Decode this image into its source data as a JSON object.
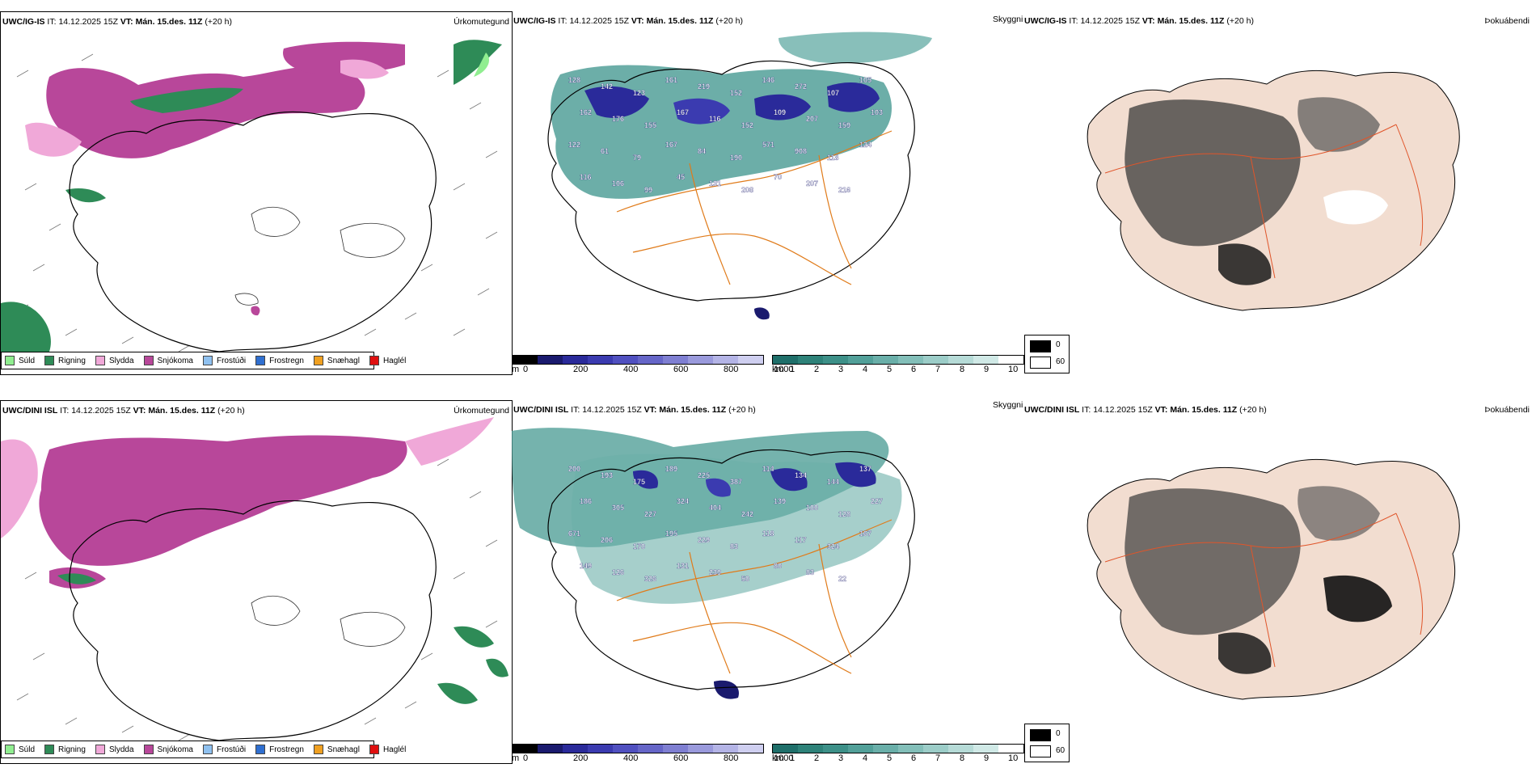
{
  "rows": [
    {
      "precip": {
        "model": "UWC/IG-IS",
        "it_label": "IT:",
        "it_value": "14.12.2025 15Z",
        "vt_label": "VT:",
        "vt_value": "Mán. 15.des. 11Z",
        "lead": "(+20 h)",
        "ptype": "Úrkomutegund"
      },
      "cloud": {
        "model": "UWC/IG-IS",
        "it_label": "IT:",
        "it_value": "14.12.2025 15Z",
        "vt_label": "VT:",
        "vt_value": "Mán. 15.des. 11Z",
        "lead": "(+20 h)",
        "ptype": "Skyggni"
      },
      "fog": {
        "model": "UWC/IG-IS",
        "it_label": "IT:",
        "it_value": "14.12.2025 15Z",
        "vt_label": "VT:",
        "vt_value": "Mán. 15.des. 11Z",
        "lead": "(+20 h)",
        "ptype": "Þokuábendi"
      },
      "cloud_labels": [
        "128",
        "142",
        "123",
        "161",
        "219",
        "152",
        "146",
        "272",
        "107",
        "105",
        "162",
        "176",
        "155",
        "167",
        "116",
        "152",
        "109",
        "207",
        "159",
        "103",
        "122",
        "61",
        "79",
        "167",
        "84",
        "190",
        "571",
        "908",
        "118",
        "124",
        "116",
        "106",
        "99",
        "45",
        "131",
        "208",
        "70",
        "207",
        "216"
      ]
    },
    {
      "precip": {
        "model": "UWC/DINI ISL",
        "it_label": "IT:",
        "it_value": "14.12.2025 15Z",
        "vt_label": "VT:",
        "vt_value": "Mán. 15.des. 11Z",
        "lead": "(+20 h)",
        "ptype": "Úrkomutegund"
      },
      "cloud": {
        "model": "UWC/DINI ISL",
        "it_label": "IT:",
        "it_value": "14.12.2025 15Z",
        "vt_label": "VT:",
        "vt_value": "Mán. 15.des. 11Z",
        "lead": "(+20 h)",
        "ptype": "Skyggni"
      },
      "fog": {
        "model": "UWC/DINI ISL",
        "it_label": "IT:",
        "it_value": "14.12.2025 15Z",
        "vt_label": "VT:",
        "vt_value": "Mán. 15.des. 11Z",
        "lead": "(+20 h)",
        "ptype": "Þokuábendi"
      },
      "cloud_labels": [
        "200",
        "193",
        "175",
        "189",
        "225",
        "387",
        "114",
        "134",
        "144",
        "137",
        "186",
        "305",
        "227",
        "324",
        "404",
        "242",
        "139",
        "100",
        "128",
        "227",
        "671",
        "206",
        "170",
        "195",
        "229",
        "83",
        "118",
        "117",
        "324",
        "167",
        "149",
        "126",
        "326",
        "131",
        "239",
        "50",
        "80",
        "83",
        "22"
      ]
    }
  ],
  "precip_legend": [
    {
      "label": "Súld",
      "color": "#90ee90"
    },
    {
      "label": "Rigning",
      "color": "#2e8b57"
    },
    {
      "label": "Slydda",
      "color": "#f0a8d8"
    },
    {
      "label": "Snjókoma",
      "color": "#b8479a"
    },
    {
      "label": "Frostúði",
      "color": "#8fc1f0"
    },
    {
      "label": "Frostregn",
      "color": "#2f6fd0"
    },
    {
      "label": "Snæhagl",
      "color": "#f0a020"
    },
    {
      "label": "Haglél",
      "color": "#e01010"
    }
  ],
  "ceiling_bar": {
    "unit": "m",
    "ticks": [
      "0",
      "200",
      "400",
      "600",
      "800",
      "1000"
    ],
    "colors": [
      "#000000",
      "#1a1a6e",
      "#2a2a9a",
      "#3b3bb0",
      "#5050c0",
      "#6666c8",
      "#7f7fd2",
      "#9a9adc",
      "#b4b4e6",
      "#cfcff0"
    ]
  },
  "visibility_bar": {
    "unit": "km",
    "ticks": [
      "1",
      "2",
      "3",
      "4",
      "5",
      "6",
      "7",
      "8",
      "9",
      "10"
    ],
    "colors": [
      "#1f6f6a",
      "#2e8279",
      "#3d9088",
      "#52a099",
      "#6aafa9",
      "#83bfb9",
      "#9ccdc8",
      "#b6dbd7",
      "#d0e9e6",
      "#ffffff"
    ]
  },
  "fog_legend": {
    "top": "0",
    "bottom": "60"
  },
  "colors": {
    "snow": "#b8479a",
    "rain": "#2e8b57",
    "sleet": "#f0a8d8",
    "drizzle": "#90ee90",
    "coast": "#000000",
    "roads": "#e07b1a",
    "land_fog": "#f2ddd0",
    "fog_dark": "#1a1a1a"
  }
}
